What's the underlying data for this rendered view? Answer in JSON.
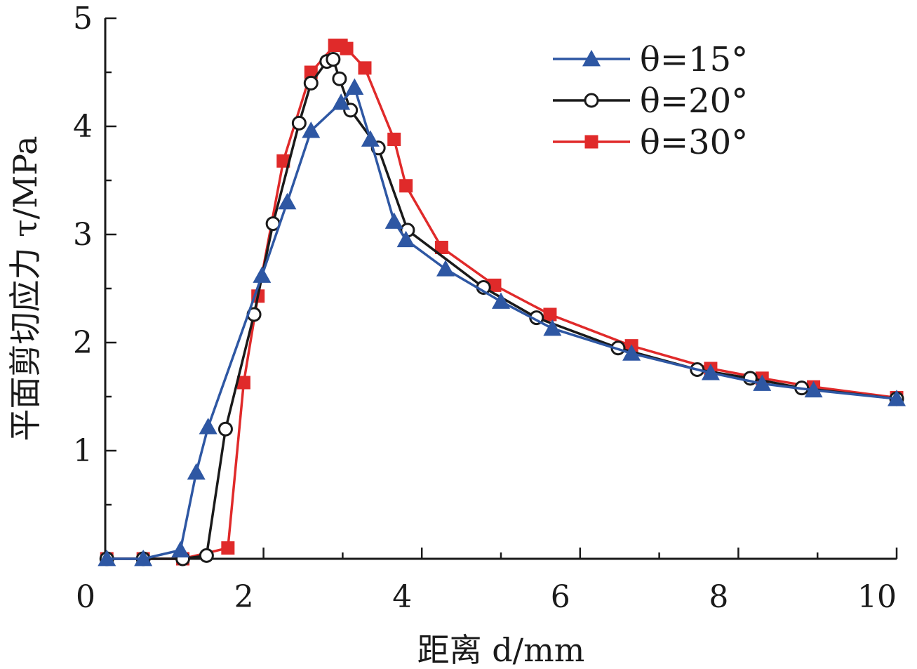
{
  "chart_data": {
    "type": "line",
    "xlabel": "距离 d/mm",
    "ylabel": "平面剪切应力 τ/MPa",
    "xlim": [
      0,
      10
    ],
    "ylim": [
      0,
      5
    ],
    "x_ticks": [
      "0",
      "2",
      "4",
      "6",
      "8",
      "10"
    ],
    "y_ticks": [
      "1",
      "2",
      "3",
      "4",
      "5"
    ],
    "legend_position": "top-right",
    "series": [
      {
        "name": "θ=15°",
        "color": "#2E57A3",
        "marker": "triangle",
        "x": [
          0.02,
          0.48,
          0.95,
          1.15,
          1.3,
          1.98,
          2.3,
          2.6,
          2.98,
          3.15,
          3.35,
          3.65,
          3.8,
          4.3,
          5.0,
          5.65,
          6.65,
          7.65,
          8.3,
          8.95,
          10.0
        ],
        "y": [
          0.0,
          0.0,
          0.08,
          0.8,
          1.22,
          2.62,
          3.3,
          3.96,
          4.22,
          4.36,
          3.88,
          3.12,
          2.95,
          2.68,
          2.38,
          2.13,
          1.9,
          1.72,
          1.62,
          1.56,
          1.48
        ]
      },
      {
        "name": "θ=20°",
        "color": "#1a1a1a",
        "marker": "circle",
        "x": [
          0.02,
          0.48,
          0.98,
          1.28,
          1.52,
          1.88,
          2.12,
          2.45,
          2.6,
          2.8,
          2.88,
          2.96,
          3.1,
          3.45,
          3.82,
          4.78,
          5.45,
          6.48,
          7.48,
          8.15,
          8.8,
          10.0
        ],
        "y": [
          0.0,
          0.0,
          0.0,
          0.03,
          1.2,
          2.26,
          3.1,
          4.03,
          4.4,
          4.6,
          4.62,
          4.44,
          4.15,
          3.8,
          3.04,
          2.51,
          2.23,
          1.95,
          1.75,
          1.67,
          1.58,
          1.48
        ]
      },
      {
        "name": "θ=30°",
        "color": "#E02A2A",
        "marker": "square",
        "x": [
          0.02,
          0.48,
          0.98,
          1.55,
          1.75,
          1.93,
          2.25,
          2.6,
          2.9,
          2.98,
          3.05,
          3.28,
          3.65,
          3.8,
          4.25,
          4.92,
          5.62,
          6.65,
          7.65,
          8.3,
          8.95,
          10.0
        ],
        "y": [
          0.0,
          0.0,
          0.0,
          0.1,
          1.63,
          2.43,
          3.68,
          4.5,
          4.75,
          4.75,
          4.72,
          4.54,
          3.88,
          3.45,
          2.88,
          2.53,
          2.26,
          1.97,
          1.76,
          1.67,
          1.59,
          1.49
        ]
      }
    ]
  }
}
